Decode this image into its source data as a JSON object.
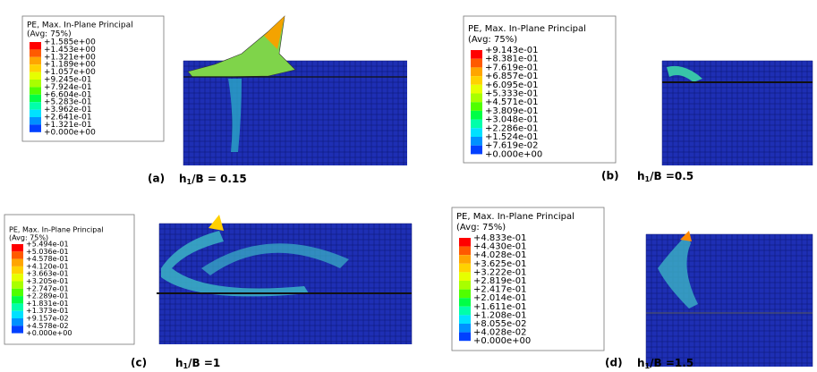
{
  "panels": [
    {
      "legend": {
        "title": [
          "PE, Max. In-Plane Principal",
          "(Avg: 75%)"
        ],
        "values": [
          "+1.585e+00",
          "+1.453e+00",
          "+1.321e+00",
          "+1.189e+00",
          "+1.057e+00",
          "+9.245e-01",
          "+7.924e-01",
          "+6.604e-01",
          "+5.283e-01",
          "+3.962e-01",
          "+2.641e-01",
          "+1.321e-01",
          "+0.000e+00"
        ]
      },
      "caption": {
        "label": "(a)",
        "var": "h",
        "sub": "1",
        "rest": "/B = 0.15"
      }
    },
    {
      "legend": {
        "title": [
          "PE, Max. In-Plane Principal",
          "(Avg: 75%)"
        ],
        "values": [
          "+9.143e-01",
          "+8.381e-01",
          "+7.619e-01",
          "+6.857e-01",
          "+6.095e-01",
          "+5.333e-01",
          "+4.571e-01",
          "+3.809e-01",
          "+3.048e-01",
          "+2.286e-01",
          "+1.524e-01",
          "+7.619e-02",
          "+0.000e+00"
        ]
      },
      "caption": {
        "label": "(b)",
        "var": "h",
        "sub": "1",
        "rest": "/B =0.5"
      }
    },
    {
      "legend": {
        "title": [
          "PE, Max. In-Plane Principal",
          "(Avg: 75%)"
        ],
        "values": [
          "+5.494e-01",
          "+5.036e-01",
          "+4.578e-01",
          "+4.120e-01",
          "+3.663e-01",
          "+3.205e-01",
          "+2.747e-01",
          "+2.289e-01",
          "+1.831e-01",
          "+1.373e-01",
          "+9.157e-02",
          "+4.578e-02",
          "+0.000e+00"
        ]
      },
      "caption": {
        "label": "(c)",
        "var": "h",
        "sub": "1",
        "rest": "/B =1"
      }
    },
    {
      "legend": {
        "title": [
          "PE, Max. In-Plane Principal",
          "(Avg: 75%)"
        ],
        "values": [
          "+4.833e-01",
          "+4.430e-01",
          "+4.028e-01",
          "+3.625e-01",
          "+3.222e-01",
          "+2.819e-01",
          "+2.417e-01",
          "+2.014e-01",
          "+1.611e-01",
          "+1.208e-01",
          "+8.055e-02",
          "+4.028e-02",
          "+0.000e+00"
        ]
      },
      "caption": {
        "label": "(d)",
        "var": "h",
        "sub": "1",
        "rest": "/B =1.5"
      }
    }
  ]
}
